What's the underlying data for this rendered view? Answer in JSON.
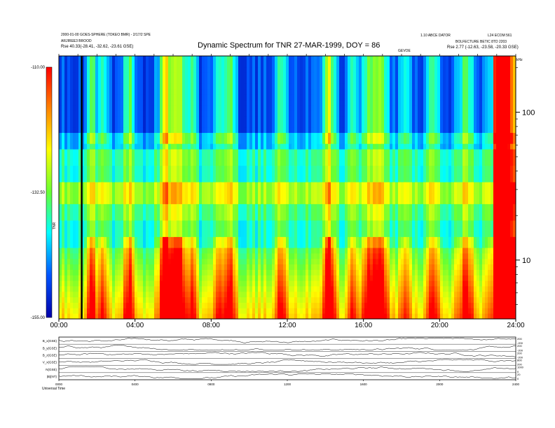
{
  "header": {
    "left_line1": "2000-01-00 GOES-SPHERE (TOKEO BMR) - 2/17/2 SPE",
    "left_line2": "ARJIREE3 BROOD",
    "left_line3": "Rse   40.33(-28.41, -32.62, -23.61 GSE)",
    "center_title": "Dynamic Spectrum for TNR 27-MAR-1999, DOY = 86",
    "right_line1": "1.10 ABCE DATOR",
    "right_line2": "BOLFECTURE BETIC 8TD 2203",
    "right_line3": "Rse   2.77 (-12.63, -23.58, -20.33 GSE)",
    "right_code": "L24 ECOM 561",
    "marker_label": "GEVOE",
    "khz_label": "kHz",
    "colorbar_label": "TNR",
    "footer_left": "Universal Time"
  },
  "chart_data": {
    "type": "heatmap",
    "title": "Dynamic Spectrum for TNR 27-MAR-1999, DOY = 86",
    "x_ticks": [
      "00:00",
      "04:00",
      "08:00",
      "12:00",
      "16:00",
      "20:00",
      "24:00"
    ],
    "y_ticks": [
      "10",
      "100"
    ],
    "y_scale": "log",
    "ylim_khz": [
      4,
      240
    ],
    "xlim_hours": [
      0,
      24
    ],
    "colorbar_ticks": [
      "-110.00",
      "-132.50",
      "-155.00"
    ],
    "colorbar_range": [
      -155,
      -110
    ],
    "colormap": [
      "#0000aa",
      "#0055ff",
      "#00ffff",
      "#66ff33",
      "#ffff00",
      "#ff8800",
      "#ff0000"
    ],
    "vertical_marker_hour": 1.2,
    "lower_panels": [
      {
        "name": "B_x(GSE)",
        "scale_top": "200",
        "scale_bottom": "-200"
      },
      {
        "name": "B_y(GSE)",
        "scale_top": "200",
        "scale_bottom": "-200"
      },
      {
        "name": "B_z(GSE)",
        "scale_top": "200",
        "scale_bottom": "-200"
      },
      {
        "name": "V_x(GSE)",
        "scale_top": "800",
        "scale_bottom": "200"
      },
      {
        "name": "N(GSE)",
        "scale_top": "1000",
        "scale_bottom": "0"
      },
      {
        "name": "|B|(NT)",
        "scale_top": "20",
        "scale_bottom": "0"
      }
    ],
    "lower_x_ticks": [
      "0000",
      "0400",
      "0800",
      "1200",
      "1600",
      "2000",
      "2400"
    ]
  }
}
